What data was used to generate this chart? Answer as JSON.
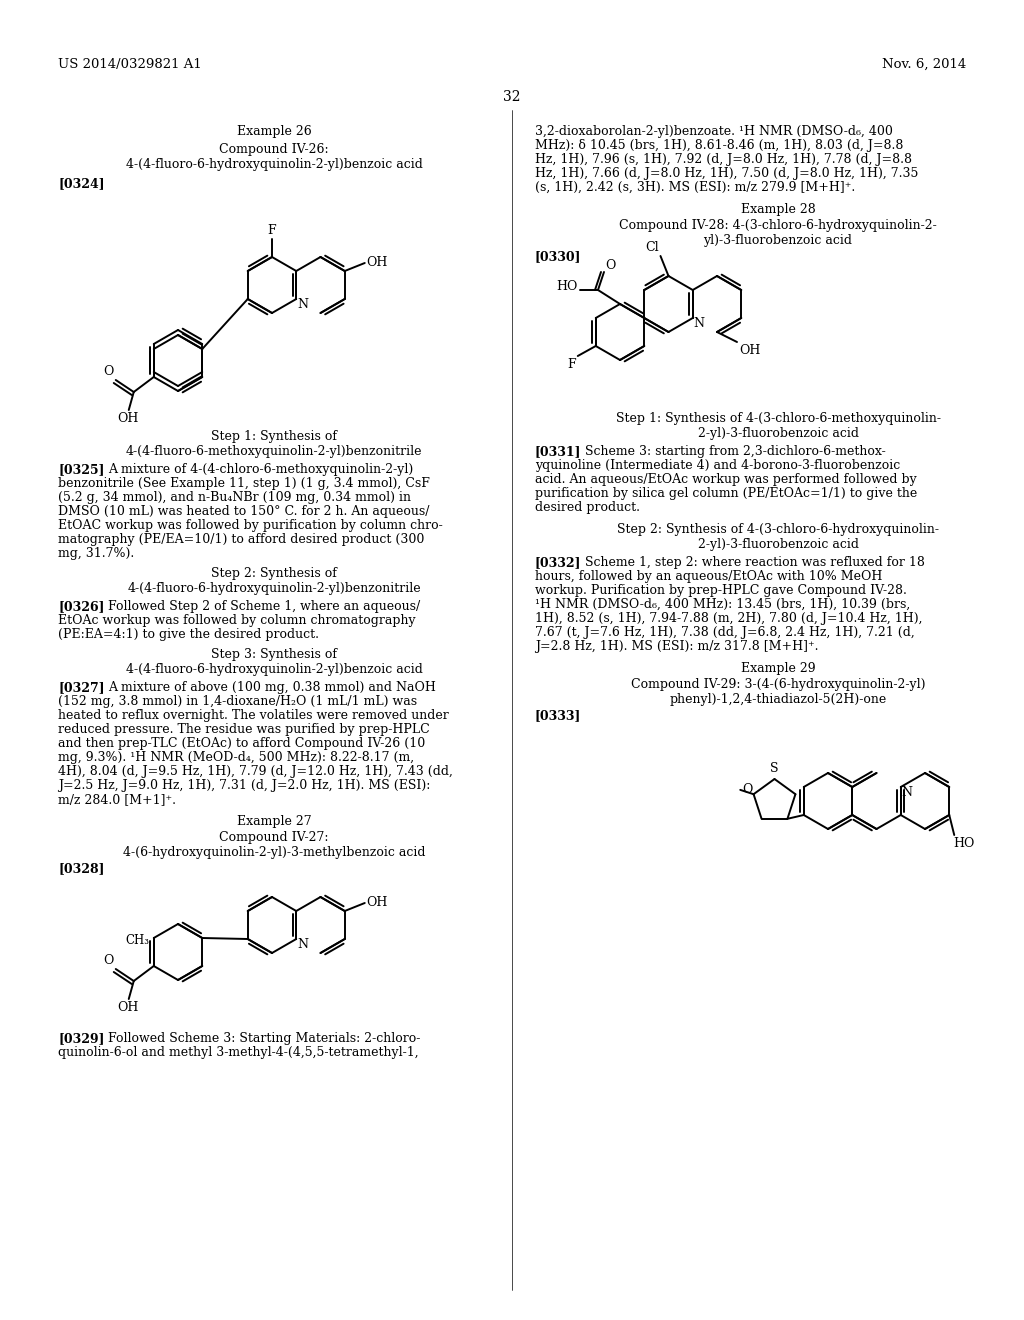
{
  "page_number": "32",
  "header_left": "US 2014/0329821 A1",
  "header_right": "Nov. 6, 2014",
  "background_color": "#ffffff",
  "text_color": "#000000"
}
